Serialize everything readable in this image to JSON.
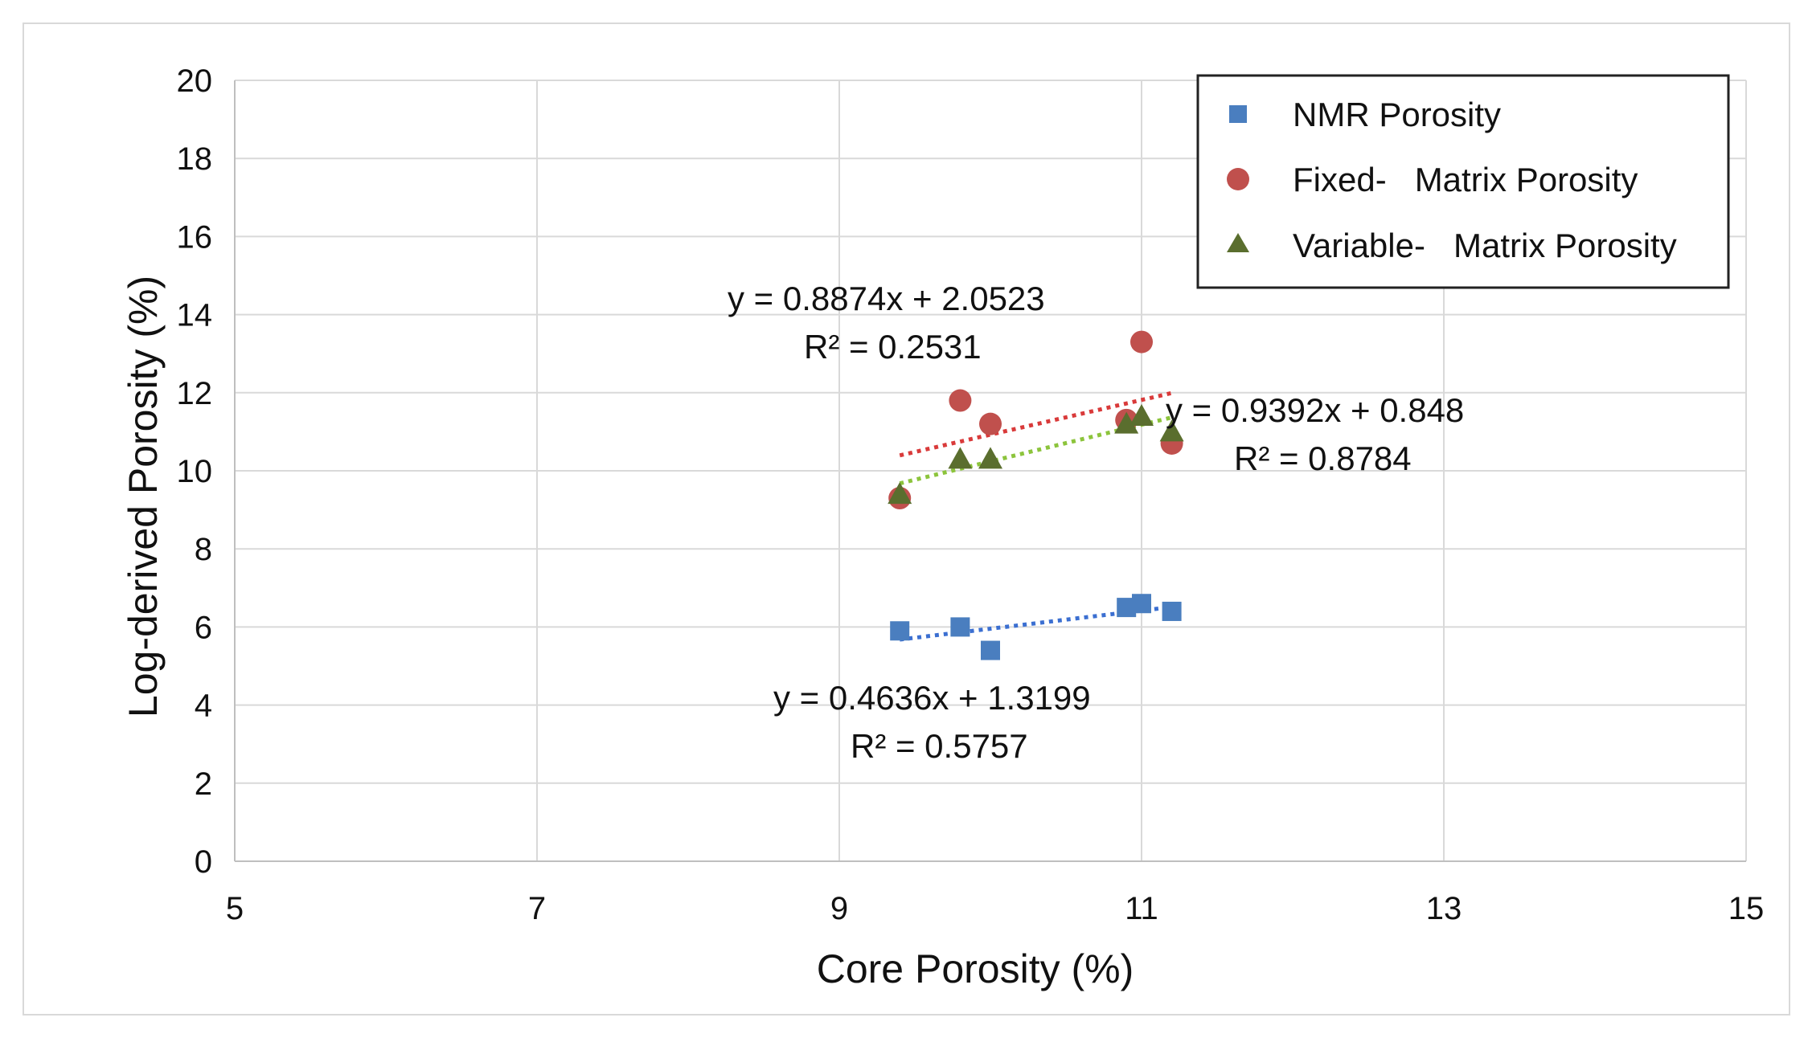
{
  "chart_data": {
    "type": "scatter",
    "title": "",
    "xlabel": "Core Porosity  (%)",
    "ylabel": "Log-derived Porosity  (%)",
    "xlim": [
      5,
      15
    ],
    "ylim": [
      0,
      20
    ],
    "xticks": [
      5,
      7,
      9,
      11,
      13,
      15
    ],
    "yticks": [
      0,
      2,
      4,
      6,
      8,
      10,
      12,
      14,
      16,
      18,
      20
    ],
    "grid": true,
    "legend_position": "top-right",
    "series": [
      {
        "name": "NMR Porosity",
        "marker": "square",
        "color": "#4a7ebf",
        "trend_color": "#3b6fd1",
        "x": [
          9.4,
          9.8,
          10.0,
          10.9,
          11.0,
          11.2
        ],
        "y": [
          5.9,
          6.0,
          5.4,
          6.5,
          6.6,
          6.4
        ],
        "trendline": {
          "slope": 0.4636,
          "intercept": 1.3199,
          "x_range": [
            9.4,
            11.2
          ]
        },
        "equation": "y = 0.4636x + 1.3199",
        "r2": "R² = 0.5757"
      },
      {
        "name": "Fixed-   Matrix Porosity",
        "marker": "circle",
        "color": "#c0504d",
        "trend_color": "#d93a3a",
        "x": [
          9.4,
          9.8,
          10.0,
          10.9,
          11.0,
          11.2
        ],
        "y": [
          9.3,
          11.8,
          11.2,
          11.3,
          13.3,
          10.7
        ],
        "trendline": {
          "slope": 0.8874,
          "intercept": 2.0523,
          "x_range": [
            9.4,
            11.2
          ]
        },
        "equation": "y = 0.8874x + 2.0523",
        "r2": "R² = 0.2531"
      },
      {
        "name": "Variable-   Matrix Porosity",
        "marker": "triangle",
        "color": "#5a6e2e",
        "trend_color": "#8cc43c",
        "x": [
          9.4,
          9.8,
          10.0,
          10.9,
          11.0,
          11.2
        ],
        "y": [
          9.4,
          10.3,
          10.3,
          11.2,
          11.4,
          11.0
        ],
        "trendline": {
          "slope": 0.9392,
          "intercept": 0.848,
          "x_range": [
            9.4,
            11.2
          ]
        },
        "equation": "y = 0.9392x + 0.848",
        "r2": "R² = 0.8784"
      }
    ]
  }
}
